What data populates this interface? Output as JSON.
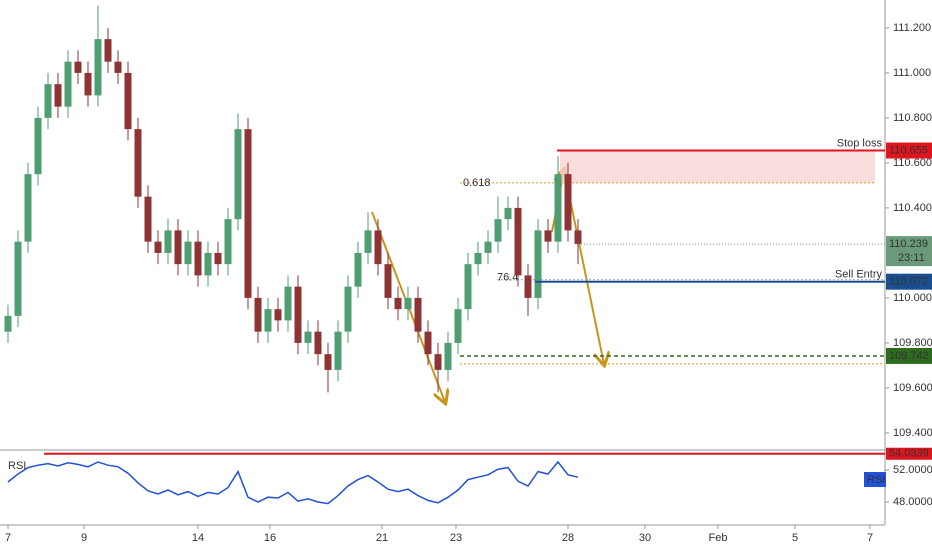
{
  "chart_data": {
    "type": "candlestick",
    "open": [
      109.85,
      109.92,
      110.25,
      110.55,
      110.8,
      110.95,
      110.85,
      111.05,
      111.0,
      110.9,
      111.15,
      111.05,
      111.0,
      110.75,
      110.45,
      110.25,
      110.2,
      110.3,
      110.15,
      110.25,
      110.1,
      110.2,
      110.15,
      110.35,
      110.75,
      110.0,
      109.85,
      109.95,
      109.9,
      110.05,
      109.8,
      109.85,
      109.75,
      109.68,
      109.85,
      110.05,
      110.2,
      110.3,
      110.15,
      110.0,
      109.95,
      110.0,
      109.85,
      109.75,
      109.68,
      109.8,
      109.95,
      110.15,
      110.2,
      110.25,
      110.35,
      110.4,
      110.1,
      110.0,
      110.3,
      110.25,
      110.55,
      110.3
    ],
    "high": [
      109.97,
      110.3,
      110.6,
      110.85,
      111.0,
      111.0,
      111.1,
      111.1,
      111.05,
      111.3,
      111.2,
      111.1,
      111.05,
      110.8,
      110.5,
      110.3,
      110.35,
      110.35,
      110.3,
      110.3,
      110.25,
      110.25,
      110.4,
      110.82,
      110.8,
      110.05,
      110.0,
      110.0,
      110.1,
      110.1,
      109.9,
      109.9,
      109.8,
      109.9,
      110.1,
      110.25,
      110.38,
      110.35,
      110.2,
      110.05,
      110.05,
      110.05,
      109.9,
      109.8,
      109.85,
      110.0,
      110.2,
      110.25,
      110.3,
      110.45,
      110.45,
      110.45,
      110.15,
      110.35,
      110.35,
      110.63,
      110.6,
      110.35
    ],
    "low": [
      109.8,
      109.87,
      110.2,
      110.5,
      110.75,
      110.8,
      110.8,
      110.95,
      110.85,
      110.85,
      111.0,
      110.95,
      110.7,
      110.4,
      110.2,
      110.15,
      110.15,
      110.1,
      110.1,
      110.05,
      110.05,
      110.1,
      110.1,
      110.3,
      109.95,
      109.8,
      109.8,
      109.85,
      109.85,
      109.75,
      109.75,
      109.7,
      109.58,
      109.63,
      109.8,
      110.0,
      110.15,
      110.1,
      109.95,
      109.9,
      109.9,
      109.8,
      109.7,
      109.58,
      109.63,
      109.75,
      109.9,
      110.1,
      110.15,
      110.2,
      110.3,
      110.05,
      109.92,
      109.95,
      110.2,
      110.2,
      110.25,
      110.15
    ],
    "close": [
      109.92,
      110.25,
      110.55,
      110.8,
      110.95,
      110.85,
      111.05,
      111.0,
      110.9,
      111.15,
      111.05,
      111.0,
      110.75,
      110.45,
      110.25,
      110.2,
      110.3,
      110.15,
      110.25,
      110.1,
      110.2,
      110.15,
      110.35,
      110.75,
      110.0,
      109.85,
      109.95,
      109.9,
      110.05,
      109.8,
      109.85,
      109.75,
      109.68,
      109.85,
      110.05,
      110.2,
      110.3,
      110.15,
      110.0,
      109.95,
      110.0,
      109.85,
      109.75,
      109.68,
      109.8,
      109.95,
      110.15,
      110.2,
      110.25,
      110.35,
      110.4,
      110.1,
      110.0,
      110.3,
      110.25,
      110.55,
      110.3,
      110.24
    ],
    "up_color": "#4f9e72",
    "down_color": "#8e3434",
    "ylim": [
      109.324,
      111.324
    ],
    "yticks": [
      {
        "value": 111.2,
        "label": "111.200"
      },
      {
        "value": 111.0,
        "label": "111.000"
      },
      {
        "value": 110.8,
        "label": "110.800"
      },
      {
        "value": 110.6,
        "label": "110.600"
      },
      {
        "value": 110.4,
        "label": "110.400"
      },
      {
        "value": 110.0,
        "label": "110.000"
      },
      {
        "value": 109.8,
        "label": "109.800"
      },
      {
        "value": 109.6,
        "label": "109.600"
      },
      {
        "value": 109.4,
        "label": "109.400"
      }
    ],
    "xlim": [
      -0.8,
      87.7
    ],
    "xticks": [
      {
        "value": 0,
        "label": "7"
      },
      {
        "value": 7.6,
        "label": "9"
      },
      {
        "value": 19,
        "label": "14"
      },
      {
        "value": 26.2,
        "label": "16"
      },
      {
        "value": 37.4,
        "label": "21"
      },
      {
        "value": 44.8,
        "label": "23"
      },
      {
        "value": 56,
        "label": "28"
      },
      {
        "value": 63.7,
        "label": "30"
      },
      {
        "value": 71,
        "label": "Feb"
      },
      {
        "value": 78.7,
        "label": "5"
      },
      {
        "value": 86.2,
        "label": "7"
      }
    ],
    "levels": {
      "stop_loss": {
        "label": "Stop loss",
        "value": 110.655,
        "color": "#e0141e"
      },
      "fib": {
        "label": "0.618",
        "value": 110.511,
        "color": "#d4a017"
      },
      "fib_764": {
        "label": "76.4",
        "value": 110.09
      },
      "sell_entry": {
        "label": "Sell Entry",
        "value": 110.072,
        "color": "#1a4f8f"
      },
      "target": {
        "value": 109.742,
        "color": "#2e6b1e"
      },
      "extension": {
        "value": 109.707
      }
    },
    "last_price": 110.239,
    "countdown": "23:11",
    "rsi": {
      "title": "RSI",
      "values": [
        50.5,
        51.5,
        52.3,
        52.6,
        52.8,
        52.5,
        52.9,
        52.7,
        52.4,
        53.0,
        52.6,
        52.4,
        51.6,
        50.4,
        49.4,
        49.0,
        49.5,
        48.9,
        49.3,
        48.7,
        49.2,
        49.0,
        49.8,
        51.8,
        48.6,
        48.0,
        48.6,
        48.5,
        49.2,
        48.1,
        48.4,
        48.0,
        47.8,
        48.8,
        50.0,
        50.8,
        51.3,
        50.5,
        49.6,
        49.3,
        49.6,
        48.8,
        48.2,
        47.9,
        48.6,
        49.5,
        50.8,
        51.1,
        51.4,
        52.1,
        52.3,
        50.6,
        50.0,
        51.8,
        51.5,
        53.0,
        51.4,
        51.1
      ],
      "ylim": [
        45.125,
        54.125
      ],
      "yticks": [
        {
          "value": 52,
          "label": "52.0000"
        },
        {
          "value": 48,
          "label": "48.0000"
        }
      ],
      "level": 54.0339,
      "color": "#2151d8"
    }
  }
}
